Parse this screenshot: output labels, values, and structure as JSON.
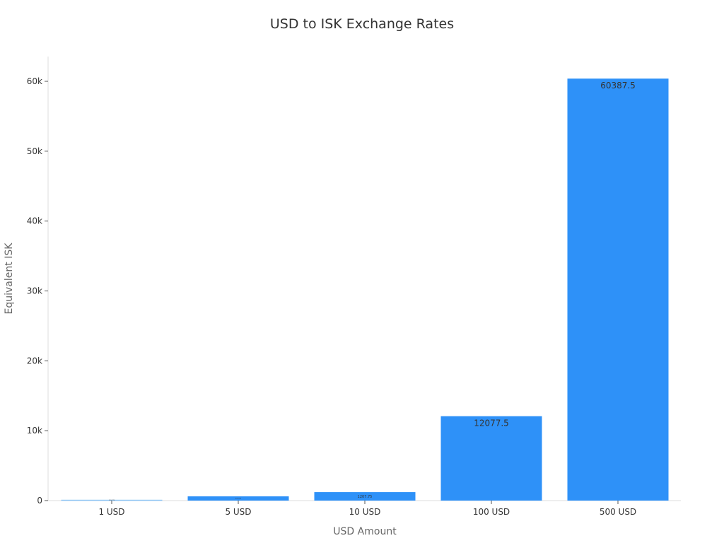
{
  "chart_data": {
    "type": "bar",
    "title": "USD to ISK Exchange Rates",
    "xlabel": "USD Amount",
    "ylabel": "Equivalent ISK",
    "categories": [
      "1 USD",
      "5 USD",
      "10 USD",
      "100 USD",
      "500 USD"
    ],
    "values": [
      120.775,
      603.875,
      1207.75,
      12077.5,
      60387.5
    ],
    "data_labels": [
      "120.775",
      "603.875",
      "1207.75",
      "12077.5",
      "60387.5"
    ],
    "ylim": [
      0,
      63500
    ],
    "yticks": [
      0,
      10000,
      20000,
      30000,
      40000,
      50000,
      60000
    ],
    "ytick_labels": [
      "0",
      "10k",
      "20k",
      "30k",
      "40k",
      "50k",
      "60k"
    ],
    "grid": false,
    "colors": {
      "bar": "#2e91f8",
      "first_bar": "#8cc4f5",
      "label": "#333333"
    }
  }
}
